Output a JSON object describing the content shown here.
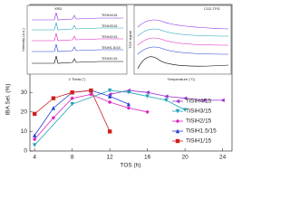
{
  "chart_data": {
    "type": "line",
    "xlabel": "TOS (h)",
    "ylabel": "IBA Sel. (%)",
    "xlim": [
      3.5,
      25
    ],
    "xticks": [
      4,
      8,
      12,
      16,
      20,
      24
    ],
    "ylim": [
      0,
      75
    ],
    "yticks": [
      0,
      10,
      20,
      30
    ],
    "legend": "lower right",
    "series": [
      {
        "name": "TiSiH4/15",
        "color": "#9b30d0",
        "marker": "tri-left",
        "x": [
          12,
          14,
          16,
          18,
          20,
          22,
          24
        ],
        "values": [
          29,
          31,
          30,
          28,
          27,
          26,
          26
        ]
      },
      {
        "name": "TiSiH3/15",
        "color": "#1aa0b8",
        "marker": "tri-down",
        "x": [
          4,
          8,
          12,
          14,
          16,
          18,
          20
        ],
        "values": [
          3,
          24,
          31,
          30,
          28,
          26,
          21
        ]
      },
      {
        "name": "TiSiH2/15",
        "color": "#e020c0",
        "marker": "diamond",
        "x": [
          4,
          6,
          8,
          10,
          12,
          14,
          16
        ],
        "values": [
          6,
          17,
          27,
          29,
          25,
          22,
          20
        ]
      },
      {
        "name": "TiSiH1.5/15",
        "color": "#2040d0",
        "marker": "tri-up",
        "x": [
          4,
          6,
          8,
          10,
          12,
          14
        ],
        "values": [
          8,
          22,
          30,
          31,
          28,
          24
        ]
      },
      {
        "name": "TiSiH1/15",
        "color": "#d02020",
        "marker": "square",
        "x": [
          4,
          6,
          8,
          10,
          12
        ],
        "values": [
          19,
          27,
          30,
          31,
          10
        ]
      }
    ]
  },
  "insets": [
    {
      "title": "XRD",
      "xlabel": "2 Theta (°)",
      "ylabel": "Intensity (a.u.)",
      "labels": [
        "TiSiH4/15",
        "TiSiH3/15",
        "TiSiH2/15",
        "TiSiH1.5/15",
        "TiSiH1/15"
      ]
    },
    {
      "title": "CO2-TPD",
      "xlabel": "Temperature (°C)",
      "ylabel": "TCD signal",
      "labels": []
    }
  ]
}
